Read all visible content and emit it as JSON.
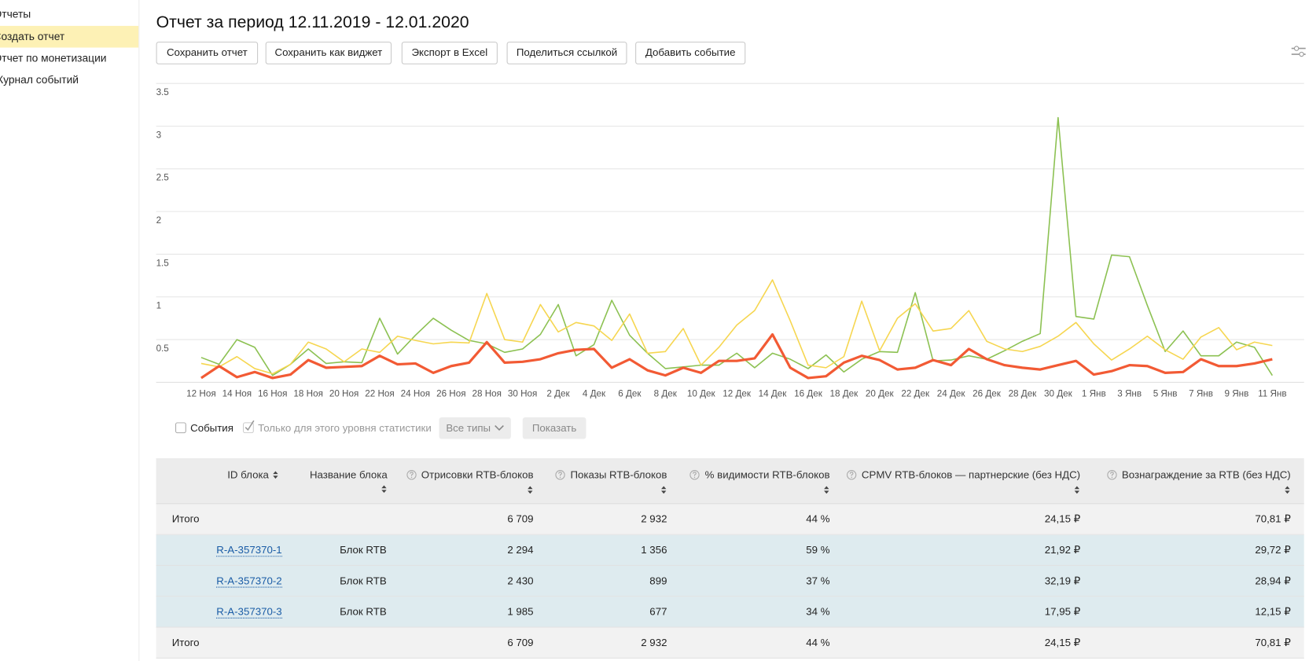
{
  "sidebar": {
    "items": [
      "Отчеты",
      "Создать отчет",
      "Отчет по монетизации",
      "Журнал событий"
    ]
  },
  "header": {
    "title": "Отчет за период 12.11.2019 - 12.01.2020",
    "buttons": [
      "Сохранить отчет",
      "Сохранить как виджет",
      "Экспорт в Excel",
      "Поделиться ссылкой",
      "Добавить событие"
    ]
  },
  "chart": {
    "type": "line",
    "categories": [
      "12 Ноя",
      null,
      "14 Ноя",
      null,
      "16 Ноя",
      null,
      "18 Ноя",
      null,
      "20 Ноя",
      null,
      "22 Ноя",
      null,
      "24 Ноя",
      null,
      "26 Ноя",
      null,
      "28 Ноя",
      null,
      "30 Ноя",
      null,
      "2 Дек",
      null,
      "4 Дек",
      null,
      "6 Дек",
      null,
      "8 Дек",
      null,
      "10 Дек",
      null,
      "12 Дек",
      null,
      "14 Дек",
      null,
      "16 Дек",
      null,
      "18 Дек",
      null,
      "20 Дек",
      null,
      "22 Дек",
      null,
      "24 Дек",
      null,
      "26 Дек",
      null,
      "28 Дек",
      null,
      "30 Дек",
      null,
      "1 Янв",
      null,
      "3 Янв",
      null,
      "5 Янв",
      null,
      "7 Янв",
      null,
      "9 Янв",
      null,
      "11 Янв"
    ],
    "ylim": [
      0,
      3.5
    ],
    "yticks": [
      0.5,
      1,
      1.5,
      2,
      2.5,
      3,
      3.5
    ],
    "grid": true,
    "series": [
      {
        "color": "#8cc152",
        "width": 1.5,
        "values": [
          0.29,
          0.21,
          0.5,
          0.41,
          0.08,
          0.21,
          0.39,
          0.22,
          0.24,
          0.23,
          0.75,
          0.33,
          0.55,
          0.75,
          0.61,
          0.49,
          0.45,
          0.35,
          0.39,
          0.56,
          0.91,
          0.31,
          0.44,
          0.96,
          0.55,
          0.34,
          0.16,
          0.18,
          0.2,
          0.2,
          0.34,
          0.17,
          0.34,
          0.27,
          0.16,
          0.32,
          0.12,
          0.27,
          0.36,
          0.35,
          1.05,
          0.25,
          0.26,
          0.31,
          0.27,
          0.37,
          0.48,
          0.57,
          3.1,
          0.77,
          0.74,
          1.49,
          1.47,
          0.9,
          0.36,
          0.6,
          0.31,
          0.31,
          0.47,
          0.41,
          0.08
        ]
      },
      {
        "color": "#f6d650",
        "width": 1.5,
        "values": [
          0.22,
          0.18,
          0.3,
          0.16,
          0.1,
          0.21,
          0.47,
          0.39,
          0.24,
          0.39,
          0.35,
          0.54,
          0.49,
          0.45,
          0.47,
          0.46,
          1.04,
          0.5,
          0.47,
          0.91,
          0.59,
          0.7,
          0.66,
          0.49,
          0.8,
          0.34,
          0.36,
          0.63,
          0.2,
          0.41,
          0.67,
          0.84,
          1.2,
          0.72,
          0.2,
          0.17,
          0.3,
          0.95,
          0.37,
          0.75,
          0.92,
          0.6,
          0.63,
          0.84,
          0.48,
          0.39,
          0.36,
          0.42,
          0.54,
          0.7,
          0.45,
          0.26,
          0.39,
          0.54,
          0.38,
          0.27,
          0.53,
          0.64,
          0.38,
          0.47,
          0.43
        ]
      },
      {
        "color": "#f25a34",
        "width": 3,
        "values": [
          0.05,
          0.19,
          0.06,
          0.12,
          0.05,
          0.09,
          0.26,
          0.17,
          0.18,
          0.19,
          0.31,
          0.21,
          0.22,
          0.11,
          0.19,
          0.23,
          0.47,
          0.23,
          0.24,
          0.27,
          0.34,
          0.38,
          0.39,
          0.17,
          0.27,
          0.14,
          0.08,
          0.17,
          0.11,
          0.25,
          0.25,
          0.28,
          0.56,
          0.17,
          0.05,
          0.07,
          0.23,
          0.31,
          0.26,
          0.15,
          0.17,
          0.26,
          0.2,
          0.39,
          0.27,
          0.2,
          0.17,
          0.15,
          0.2,
          0.25,
          0.09,
          0.13,
          0.2,
          0.19,
          0.11,
          0.12,
          0.27,
          0.19,
          0.19,
          0.22,
          0.27
        ]
      }
    ]
  },
  "filters": {
    "events_label": "События",
    "level_only_label": "Только для этого уровня статистики",
    "types_button": "Все типы",
    "show_button": "Показать"
  },
  "table": {
    "columns": [
      "ID блока",
      "Название блока",
      "Отрисовки RTB-блоков",
      "Показы RTB-блоков",
      "% видимости RTB-блоков",
      "CPMV RTB-блоков — партнерские (без НДС)",
      "Вознаграждение за RTB (без НДС)"
    ],
    "total_top": {
      "label": "Итого",
      "values": [
        "6 709",
        "2 932",
        "44 %",
        "24,15 ₽",
        "70,81 ₽"
      ]
    },
    "rows": [
      {
        "id": "R-A-357370-1",
        "name": "Блок RTB",
        "values": [
          "2 294",
          "1 356",
          "59 %",
          "21,92 ₽",
          "29,72 ₽"
        ]
      },
      {
        "id": "R-A-357370-2",
        "name": "Блок RTB",
        "values": [
          "2 430",
          "899",
          "37 %",
          "32,19 ₽",
          "28,94 ₽"
        ]
      },
      {
        "id": "R-A-357370-3",
        "name": "Блок RTB",
        "values": [
          "1 985",
          "677",
          "34 %",
          "17,95 ₽",
          "12,15 ₽"
        ]
      }
    ],
    "total_bottom": {
      "label": "Итого",
      "values": [
        "6 709",
        "2 932",
        "44 %",
        "24,15 ₽",
        "70,81 ₽"
      ]
    }
  }
}
